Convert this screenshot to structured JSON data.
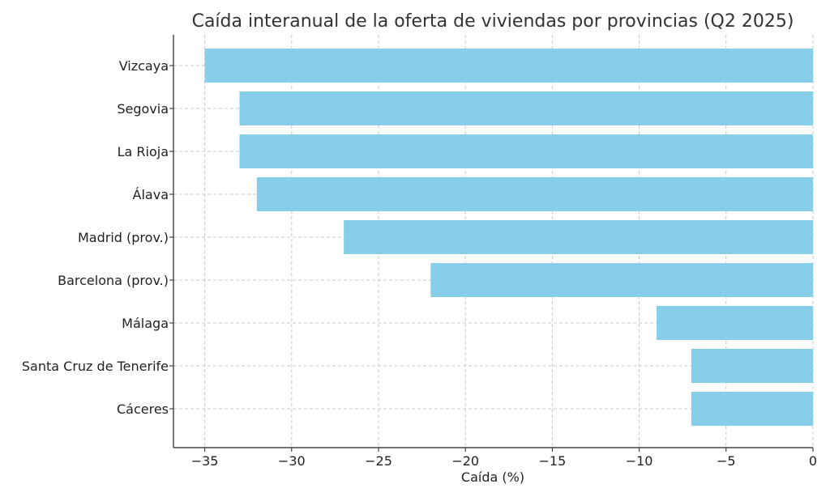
{
  "chart_data": {
    "type": "bar",
    "orientation": "horizontal",
    "title": "Caída interanual de la oferta de viviendas por provincias (Q2 2025)",
    "xlabel": "Caída (%)",
    "ylabel": "",
    "categories": [
      "Vizcaya",
      "Segovia",
      "La Rioja",
      "Álava",
      "Madrid (prov.)",
      "Barcelona (prov.)",
      "Málaga",
      "Santa Cruz de Tenerife",
      "Cáceres"
    ],
    "values": [
      -35,
      -33,
      -33,
      -32,
      -27,
      -22,
      -9,
      -7,
      -7
    ],
    "xlim": [
      -36.8,
      0
    ],
    "xticks": [
      -35,
      -30,
      -25,
      -20,
      -15,
      -10,
      -5,
      0
    ],
    "xtick_labels": [
      "−35",
      "−30",
      "−25",
      "−20",
      "−15",
      "−10",
      "−5",
      "0"
    ],
    "grid": true,
    "bar_color": "#87CEEB"
  }
}
